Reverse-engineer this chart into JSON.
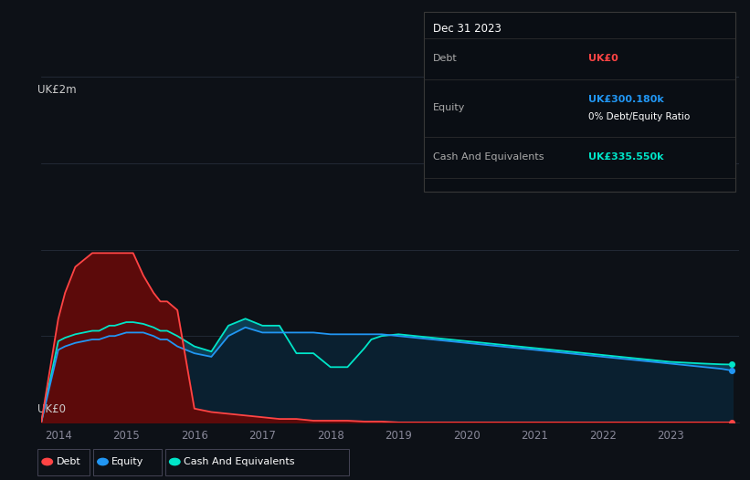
{
  "bg_color": "#0d1117",
  "plot_bg_color": "#0d1117",
  "grid_color": "#252d3a",
  "ylabel_top": "UK£2m",
  "ylabel_bottom": "UK£0",
  "legend": [
    {
      "label": "Debt",
      "color": "#ff4444"
    },
    {
      "label": "Equity",
      "color": "#2196f3"
    },
    {
      "label": "Cash And Equivalents",
      "color": "#00e5c8"
    }
  ],
  "info_box": {
    "date": "Dec 31 2023",
    "rows": [
      {
        "label": "Debt",
        "value": "UK£0",
        "value_color": "#ff4444",
        "sub": null
      },
      {
        "label": "Equity",
        "value": "UK£300.180k",
        "value_color": "#2196f3",
        "sub": "0% Debt/Equity Ratio"
      },
      {
        "label": "Cash And Equivalents",
        "value": "UK£335.550k",
        "value_color": "#00e5c8",
        "sub": null
      }
    ]
  },
  "series": {
    "years": [
      2013.75,
      2014.0,
      2014.1,
      2014.25,
      2014.5,
      2014.6,
      2014.75,
      2014.83,
      2015.0,
      2015.1,
      2015.25,
      2015.4,
      2015.5,
      2015.6,
      2015.75,
      2016.0,
      2016.25,
      2016.5,
      2016.75,
      2017.0,
      2017.25,
      2017.5,
      2017.75,
      2018.0,
      2018.1,
      2018.25,
      2018.5,
      2018.6,
      2018.75,
      2019.0,
      2019.25,
      2019.5,
      2019.75,
      2020.0,
      2020.25,
      2020.5,
      2020.75,
      2021.0,
      2021.25,
      2021.5,
      2021.75,
      2022.0,
      2022.25,
      2022.5,
      2022.75,
      2023.0,
      2023.25,
      2023.5,
      2023.75,
      2023.9
    ],
    "debt": [
      0.0,
      0.6,
      0.75,
      0.9,
      0.98,
      0.98,
      0.98,
      0.98,
      0.98,
      0.98,
      0.85,
      0.75,
      0.7,
      0.7,
      0.65,
      0.08,
      0.06,
      0.05,
      0.04,
      0.03,
      0.02,
      0.02,
      0.01,
      0.01,
      0.01,
      0.01,
      0.005,
      0.005,
      0.005,
      0.0,
      0.0,
      0.0,
      0.0,
      0.0,
      0.0,
      0.0,
      0.0,
      0.0,
      0.0,
      0.0,
      0.0,
      0.0,
      0.0,
      0.0,
      0.0,
      0.0,
      0.0,
      0.0,
      0.0,
      0.0
    ],
    "equity": [
      0.0,
      0.42,
      0.44,
      0.46,
      0.48,
      0.48,
      0.5,
      0.5,
      0.52,
      0.52,
      0.52,
      0.5,
      0.48,
      0.48,
      0.44,
      0.4,
      0.38,
      0.5,
      0.55,
      0.52,
      0.52,
      0.52,
      0.52,
      0.51,
      0.51,
      0.51,
      0.51,
      0.51,
      0.51,
      0.5,
      0.49,
      0.48,
      0.47,
      0.46,
      0.45,
      0.44,
      0.43,
      0.42,
      0.41,
      0.4,
      0.39,
      0.38,
      0.37,
      0.36,
      0.35,
      0.34,
      0.33,
      0.32,
      0.31,
      0.3
    ],
    "cash": [
      0.0,
      0.47,
      0.49,
      0.51,
      0.53,
      0.53,
      0.56,
      0.56,
      0.58,
      0.58,
      0.57,
      0.55,
      0.53,
      0.53,
      0.5,
      0.44,
      0.41,
      0.56,
      0.6,
      0.56,
      0.56,
      0.4,
      0.4,
      0.32,
      0.32,
      0.32,
      0.43,
      0.48,
      0.5,
      0.51,
      0.5,
      0.49,
      0.48,
      0.47,
      0.46,
      0.45,
      0.44,
      0.43,
      0.42,
      0.41,
      0.4,
      0.39,
      0.38,
      0.37,
      0.36,
      0.35,
      0.345,
      0.34,
      0.336,
      0.335
    ]
  },
  "ylim": [
    0,
    2.0
  ],
  "xlim": [
    2013.75,
    2024.0
  ],
  "xticks": [
    2014,
    2015,
    2016,
    2017,
    2018,
    2019,
    2020,
    2021,
    2022,
    2023
  ],
  "xtick_labels": [
    "2014",
    "2015",
    "2016",
    "2017",
    "2018",
    "2019",
    "2020",
    "2021",
    "2022",
    "2023"
  ]
}
